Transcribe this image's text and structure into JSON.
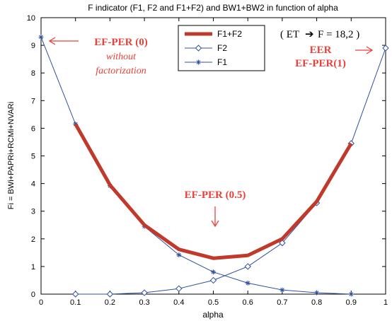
{
  "chart_data": {
    "type": "line",
    "title": "F indicator (F1, F2 and F1+F2) and BW1+BW2 in function of alpha",
    "xlabel": "alpha",
    "ylabel": "Fi = BWi+PAPRi+RCMi+NVARi",
    "xlim": [
      0,
      1
    ],
    "ylim": [
      0,
      10
    ],
    "xticks": [
      "0",
      "0.1",
      "0.2",
      "0.3",
      "0.4",
      "0.5",
      "0.6",
      "0.7",
      "0.8",
      "0.9",
      "1"
    ],
    "yticks": [
      "0",
      "1",
      "2",
      "3",
      "4",
      "5",
      "6",
      "7",
      "8",
      "9",
      "10"
    ],
    "grid": false,
    "legend_position": "top-center",
    "series": [
      {
        "name": "F1+F2",
        "color": "#c0392b",
        "marker": "none",
        "x": [
          0.1,
          0.2,
          0.3,
          0.4,
          0.5,
          0.6,
          0.7,
          0.8,
          0.9
        ],
        "y": [
          6.15,
          3.95,
          2.5,
          1.62,
          1.3,
          1.4,
          2.0,
          3.35,
          5.45
        ]
      },
      {
        "name": "F2",
        "color": "#3050a0",
        "marker": "diamond",
        "x": [
          0.1,
          0.2,
          0.3,
          0.4,
          0.5,
          0.6,
          0.7,
          0.8,
          0.9,
          1.0
        ],
        "y": [
          0.0,
          0.0,
          0.05,
          0.2,
          0.5,
          1.0,
          1.85,
          3.3,
          5.45,
          8.9
        ]
      },
      {
        "name": "F1",
        "color": "#3050a0",
        "marker": "star",
        "x": [
          0.0,
          0.1,
          0.2,
          0.3,
          0.4,
          0.5,
          0.6,
          0.7,
          0.8,
          0.9
        ],
        "y": [
          9.3,
          6.15,
          3.92,
          2.45,
          1.42,
          0.8,
          0.4,
          0.15,
          0.05,
          0.0
        ]
      }
    ],
    "annotations": [
      {
        "id": "ef_per_0",
        "lines": [
          "EF-PER (0)"
        ],
        "bold": true,
        "italic": false
      },
      {
        "id": "ef_per_0_sub",
        "lines": [
          "without",
          "factorization"
        ],
        "bold": false,
        "italic": true
      },
      {
        "id": "eer",
        "lines": [
          "EER",
          "EF-PER(1)"
        ],
        "bold": true,
        "italic": false
      },
      {
        "id": "ef_per_05",
        "lines": [
          "EF-PER (0.5)"
        ],
        "bold": true,
        "italic": false
      }
    ],
    "et_box": {
      "prefix": "( ET",
      "arrow": "➔",
      "suffix": "F = 18,2 )"
    },
    "annotation_color": "#e8413a"
  }
}
